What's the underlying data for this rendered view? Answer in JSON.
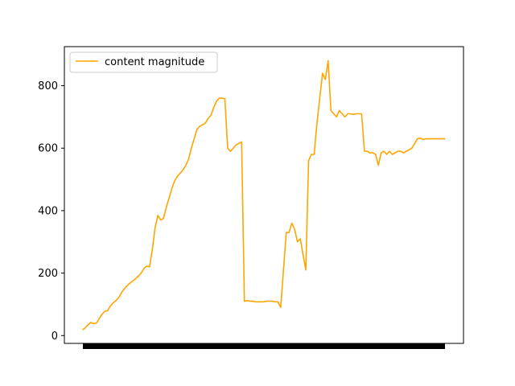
{
  "chart_data": {
    "type": "line",
    "title": "",
    "xlabel": "",
    "ylabel": "",
    "ylim": [
      -25,
      925
    ],
    "xlim": [
      -6.5,
      136.5
    ],
    "grid": false,
    "legend": {
      "position": "top-left",
      "entries": [
        "content magnitude"
      ]
    },
    "y_ticks": [
      0,
      200,
      400,
      600,
      800
    ],
    "x_tick_labels": "dense overlapping labels rendered as a solid black bar",
    "series": [
      {
        "name": "content magnitude",
        "color": "#ffa500",
        "x": [
          0,
          1,
          2,
          3,
          4,
          5,
          6,
          7,
          8,
          9,
          10,
          11,
          12,
          13,
          14,
          15,
          16,
          17,
          18,
          19,
          20,
          21,
          22,
          23,
          24,
          25,
          26,
          27,
          28,
          29,
          30,
          31,
          32,
          33,
          34,
          35,
          36,
          37,
          38,
          39,
          40,
          41,
          42,
          43,
          44,
          45,
          46,
          47,
          48,
          49,
          50,
          51,
          52,
          53,
          54,
          55,
          56,
          57,
          58,
          59,
          60,
          61,
          62,
          63,
          64,
          65,
          66,
          67,
          68,
          69,
          70,
          71,
          72,
          73,
          74,
          75,
          76,
          77,
          78,
          79,
          80,
          81,
          82,
          83,
          84,
          85,
          86,
          87,
          88,
          89,
          90,
          91,
          92,
          93,
          94,
          95,
          96,
          97,
          98,
          99,
          100,
          101,
          102,
          103,
          104,
          105,
          106,
          107,
          108,
          109,
          110,
          111,
          112,
          113,
          114,
          115,
          116,
          117,
          118,
          119,
          120,
          121,
          122,
          123,
          124,
          125,
          126,
          127,
          128,
          129,
          130
        ],
        "values": [
          18,
          25,
          35,
          42,
          38,
          40,
          55,
          68,
          78,
          80,
          95,
          105,
          112,
          122,
          138,
          150,
          160,
          168,
          175,
          182,
          190,
          200,
          215,
          222,
          220,
          275,
          345,
          385,
          370,
          375,
          410,
          440,
          470,
          495,
          510,
          520,
          530,
          545,
          565,
          600,
          630,
          660,
          670,
          675,
          680,
          695,
          705,
          730,
          750,
          760,
          760,
          758,
          600,
          590,
          600,
          610,
          615,
          620,
          110,
          112,
          110,
          110,
          108,
          108,
          108,
          108,
          110,
          110,
          110,
          108,
          108,
          90,
          210,
          330,
          330,
          360,
          340,
          300,
          310,
          260,
          210,
          560,
          580,
          580,
          680,
          760,
          840,
          820,
          880,
          720,
          710,
          700,
          720,
          710,
          700,
          710,
          710,
          708,
          710,
          710,
          710,
          590,
          590,
          585,
          585,
          580,
          545,
          585,
          590,
          580,
          590,
          580,
          585,
          590,
          590,
          585,
          590,
          595,
          600,
          615,
          630,
          632,
          628,
          630,
          630,
          630,
          630,
          630,
          630,
          630,
          630
        ]
      }
    ]
  }
}
